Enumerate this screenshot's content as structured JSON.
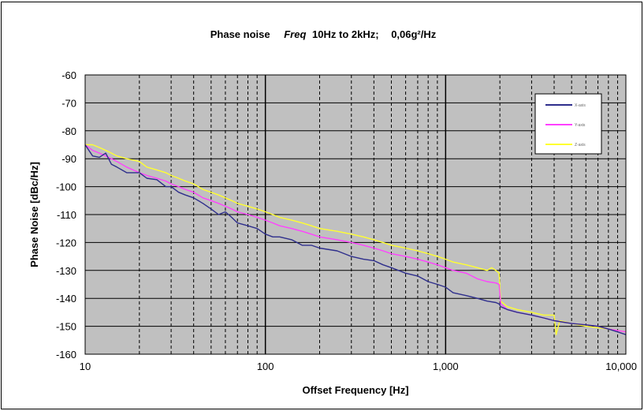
{
  "chart_data": {
    "type": "line",
    "title_parts": {
      "a": "Phase noise",
      "b": "Freq",
      "c": "10Hz to 2kHz;",
      "d": "0,06g²/Hz"
    },
    "xlabel": "Offset Frequency [Hz]",
    "ylabel": "Phase Noise [dBc/Hz]",
    "x_scale": "log",
    "xlim": [
      10,
      10000
    ],
    "ylim": [
      -160,
      -60
    ],
    "x_ticks": [
      10,
      100,
      1000,
      10000
    ],
    "x_tick_labels": [
      "10",
      "100",
      "1,000",
      "10,000"
    ],
    "y_ticks": [
      -60,
      -70,
      -80,
      -90,
      -100,
      -110,
      -120,
      -130,
      -140,
      -150,
      -160
    ],
    "y_tick_labels": [
      "-60",
      "-70",
      "-80",
      "-90",
      "-100",
      "-110",
      "-120",
      "-130",
      "-140",
      "-150",
      "-160"
    ],
    "grid": true,
    "plot_background": "#c0c0c0",
    "legend_position": "top-right",
    "series": [
      {
        "name": "X-axis",
        "color": "#2e2e8c",
        "x": [
          10,
          11,
          12,
          13,
          14,
          15,
          17,
          20,
          22,
          25,
          28,
          30,
          33,
          36,
          40,
          45,
          50,
          55,
          60,
          65,
          70,
          80,
          90,
          100,
          110,
          120,
          140,
          160,
          180,
          200,
          250,
          300,
          350,
          400,
          450,
          500,
          600,
          700,
          800,
          900,
          1000,
          1100,
          1300,
          1500,
          1700,
          1900,
          1980,
          2020,
          2200,
          2500,
          3000,
          3500,
          4000,
          5000,
          6000,
          7000,
          8000,
          9000,
          10000
        ],
        "y": [
          -85,
          -89,
          -89.5,
          -88,
          -92,
          -93,
          -95,
          -95,
          -97,
          -97.5,
          -100,
          -100,
          -102,
          -103,
          -104,
          -106,
          -108,
          -110,
          -109,
          -111,
          -113,
          -114,
          -115,
          -117,
          -118,
          -118,
          -119,
          -121,
          -121,
          -122,
          -123,
          -125,
          -126,
          -126.5,
          -128,
          -129,
          -131,
          -132,
          -134,
          -135,
          -136,
          -138,
          -139,
          -140,
          -141,
          -141.5,
          -142,
          -143,
          -144,
          -145,
          -146,
          -147,
          -148,
          -149,
          -149.5,
          -150,
          -151,
          -152,
          -153
        ]
      },
      {
        "name": "Y-axis",
        "color": "#ff40ff",
        "x": [
          10,
          11,
          12,
          13,
          14,
          15,
          17,
          20,
          22,
          25,
          28,
          30,
          33,
          36,
          40,
          45,
          50,
          55,
          60,
          65,
          70,
          80,
          90,
          100,
          110,
          120,
          140,
          160,
          180,
          200,
          250,
          300,
          350,
          400,
          450,
          500,
          600,
          700,
          800,
          900,
          1000,
          1100,
          1300,
          1500,
          1700,
          1900,
          1980,
          2020,
          2200,
          2500,
          3000,
          3500,
          4000,
          5000,
          6000,
          7000,
          8000,
          9000,
          10000
        ],
        "y": [
          -85,
          -87,
          -88,
          -89,
          -90,
          -91,
          -93,
          -95,
          -96,
          -97,
          -98,
          -99,
          -100,
          -101,
          -102,
          -104,
          -105,
          -106,
          -107,
          -108,
          -109,
          -110,
          -111,
          -112,
          -113,
          -114,
          -115,
          -116,
          -117,
          -118,
          -119,
          -120,
          -121,
          -122,
          -123,
          -124,
          -125,
          -126,
          -127,
          -128,
          -129,
          -130,
          -131,
          -133,
          -134,
          -134.5,
          -135,
          -142,
          -144,
          -145,
          -146,
          -147,
          -148,
          -149,
          -149.5,
          -150,
          -151,
          -151.5,
          -152
        ]
      },
      {
        "name": "Z-axis",
        "color": "#ffff30",
        "x": [
          10,
          11,
          12,
          13,
          14,
          15,
          17,
          20,
          22,
          25,
          28,
          30,
          33,
          36,
          40,
          45,
          50,
          55,
          60,
          65,
          70,
          80,
          90,
          100,
          110,
          120,
          140,
          160,
          180,
          200,
          250,
          300,
          350,
          400,
          450,
          500,
          600,
          700,
          800,
          900,
          1000,
          1100,
          1300,
          1500,
          1700,
          1800,
          1900,
          1980,
          2020,
          2200,
          2500,
          3000,
          3500,
          4000,
          4100,
          4300,
          5000,
          6000,
          7000,
          8000,
          9000,
          10000
        ],
        "y": [
          -85,
          -85,
          -86,
          -87,
          -88,
          -89,
          -90,
          -91,
          -93,
          -94,
          -95,
          -96,
          -97,
          -98,
          -99,
          -101,
          -102,
          -103,
          -104,
          -105,
          -106,
          -107,
          -108,
          -109,
          -110,
          -111,
          -112,
          -113,
          -114,
          -115,
          -116,
          -117,
          -118,
          -119,
          -120,
          -121,
          -122,
          -123,
          -124,
          -125,
          -126,
          -127,
          -128,
          -129,
          -130,
          -129,
          -130,
          -131,
          -141,
          -143,
          -144,
          -145,
          -146,
          -146,
          -153,
          -148,
          -149,
          -150,
          -150.5,
          -151,
          -151.5,
          -152
        ]
      }
    ]
  }
}
